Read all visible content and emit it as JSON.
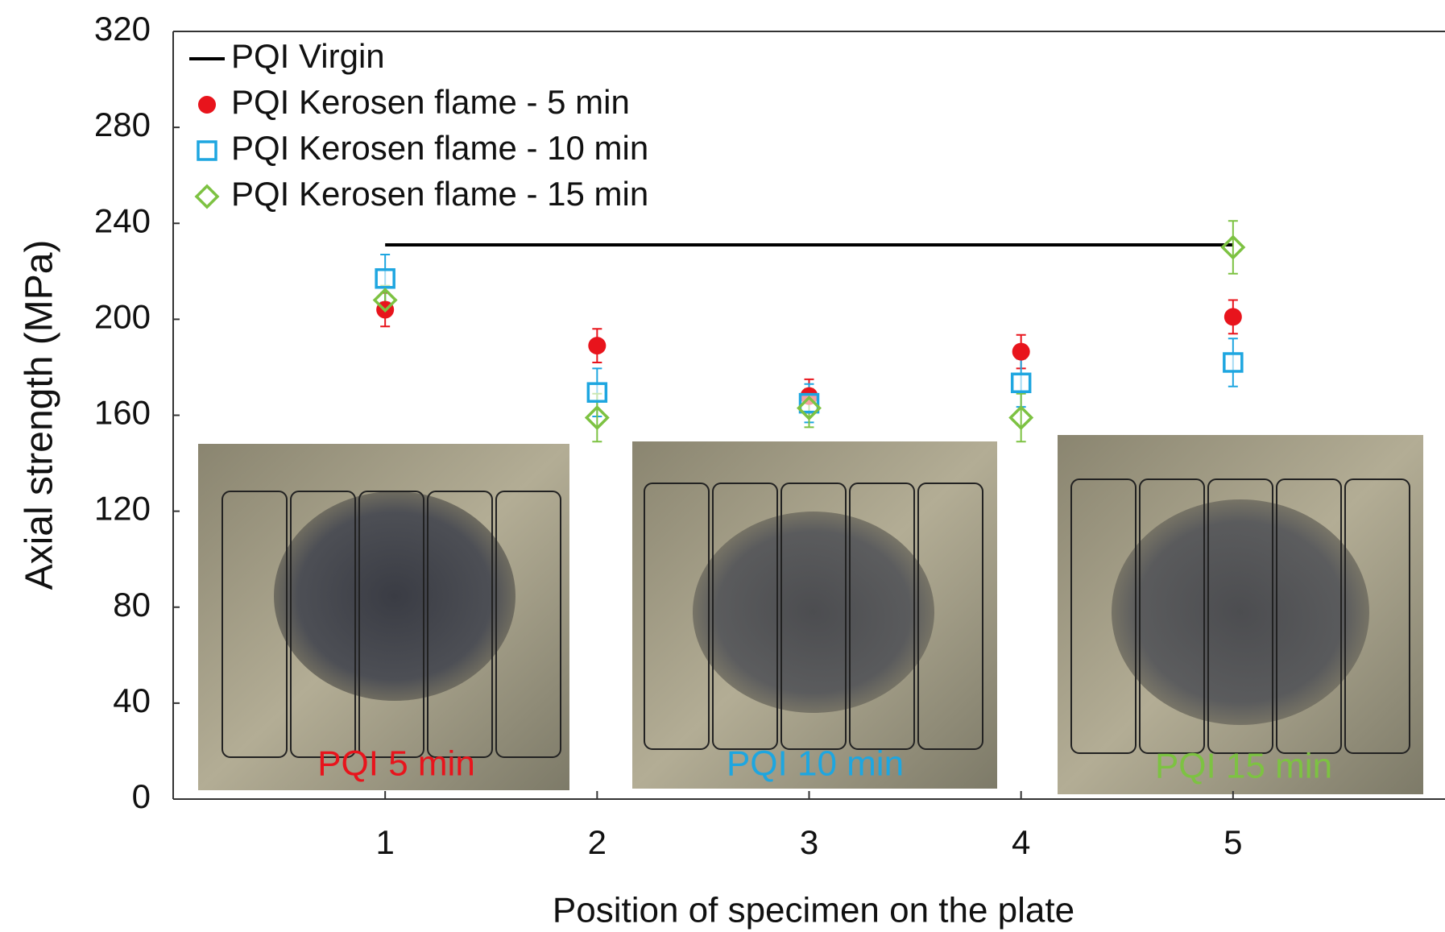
{
  "chart_data": {
    "type": "scatter",
    "x_label": "Position of specimen on the plate",
    "y_label": "Axial strength (MPa)",
    "x": [
      1,
      2,
      3,
      4,
      5
    ],
    "xlim": [
      0,
      6
    ],
    "xticks": [
      1,
      2,
      3,
      4,
      5
    ],
    "ylim": [
      0,
      320
    ],
    "yticks": [
      0,
      40,
      80,
      120,
      160,
      200,
      240,
      280,
      320
    ],
    "grid": false,
    "legend": "upper left",
    "series": [
      {
        "name": "PQI Virgin",
        "color": "#000000",
        "marker": "line",
        "values": [
          231,
          231,
          231,
          231,
          231
        ]
      },
      {
        "name": "PQI Kerosen flame - 5 min",
        "color": "#e8141c",
        "marker": "circle",
        "values": [
          204,
          189,
          168,
          186.5,
          201
        ],
        "errors": [
          7,
          7,
          7,
          7,
          7
        ]
      },
      {
        "name": "PQI Kerosen flame - 10 min",
        "color": "#1ea6e0",
        "marker": "square",
        "values": [
          217,
          169.5,
          165,
          173.5,
          182
        ],
        "errors": [
          10,
          10,
          8,
          10,
          10
        ]
      },
      {
        "name": "PQI Kerosen flame - 15 min",
        "color": "#7dc242",
        "marker": "diamond",
        "values": [
          208,
          159,
          163,
          159,
          230
        ],
        "errors": [
          6,
          10,
          8,
          10,
          11
        ]
      }
    ],
    "annotations": [
      {
        "text": "PQI 5 min",
        "color": "#e8141c"
      },
      {
        "text": "PQI 10 min",
        "color": "#1ea6e0"
      },
      {
        "text": "PQI 15 min",
        "color": "#7dc242"
      }
    ]
  }
}
